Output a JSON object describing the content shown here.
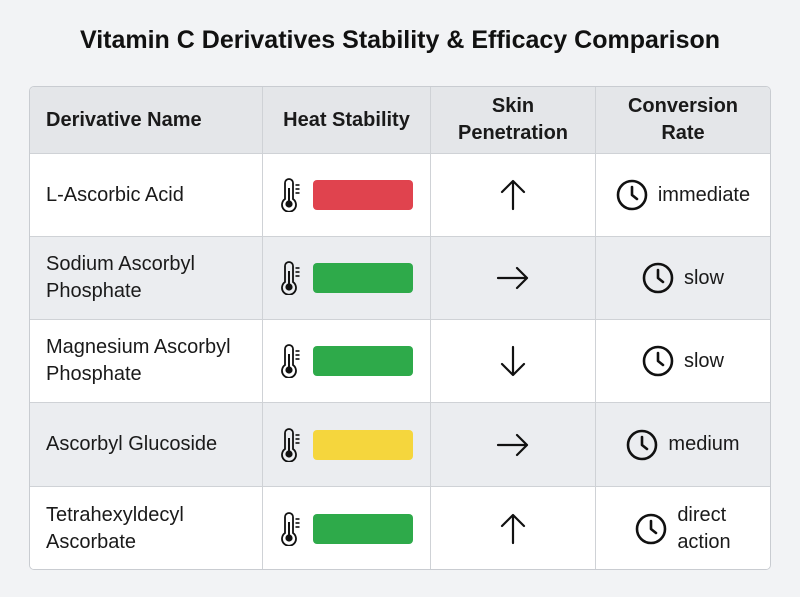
{
  "title": "Vitamin C Derivatives Stability & Efficacy Comparison",
  "headers": {
    "name": "Derivative Name",
    "heat": "Heat Stability",
    "skin_l1": "Skin",
    "skin_l2": "Penetration",
    "conv_l1": "Conversion",
    "conv_l2": "Rate"
  },
  "status_colors": {
    "low": "#e0434e",
    "high": "#2eaa4a",
    "medium": "#f5d63d"
  },
  "rows": [
    {
      "name_l1": "L-Ascorbic Acid",
      "name_l2": "",
      "heat_stability": "low",
      "bar_color": "#e0434e",
      "thermometer_icon": "thermometer-icon",
      "penetration_icon": "arrow-up-icon",
      "clock_icon": "clock-icon",
      "conv_l1": "immediate",
      "conv_l2": ""
    },
    {
      "name_l1": "Sodium Ascorbyl",
      "name_l2": "Phosphate",
      "heat_stability": "high",
      "bar_color": "#2eaa4a",
      "thermometer_icon": "thermometer-icon",
      "penetration_icon": "arrow-right-icon",
      "clock_icon": "clock-icon",
      "conv_l1": "slow",
      "conv_l2": ""
    },
    {
      "name_l1": "Magnesium Ascorbyl",
      "name_l2": "Phosphate",
      "heat_stability": "high",
      "bar_color": "#2eaa4a",
      "thermometer_icon": "thermometer-icon",
      "penetration_icon": "arrow-down-icon",
      "clock_icon": "clock-icon",
      "conv_l1": "slow",
      "conv_l2": ""
    },
    {
      "name_l1": "Ascorbyl Glucoside",
      "name_l2": "",
      "heat_stability": "medium",
      "bar_color": "#f5d63d",
      "thermometer_icon": "thermometer-icon",
      "penetration_icon": "arrow-right-icon",
      "clock_icon": "clock-icon",
      "conv_l1": "medium",
      "conv_l2": ""
    },
    {
      "name_l1": "Tetrahexyldecyl",
      "name_l2": "Ascorbate",
      "heat_stability": "high",
      "bar_color": "#2eaa4a",
      "thermometer_icon": "thermometer-icon",
      "penetration_icon": "arrow-up-icon",
      "clock_icon": "clock-icon",
      "conv_l1": "direct",
      "conv_l2": "action"
    }
  ]
}
